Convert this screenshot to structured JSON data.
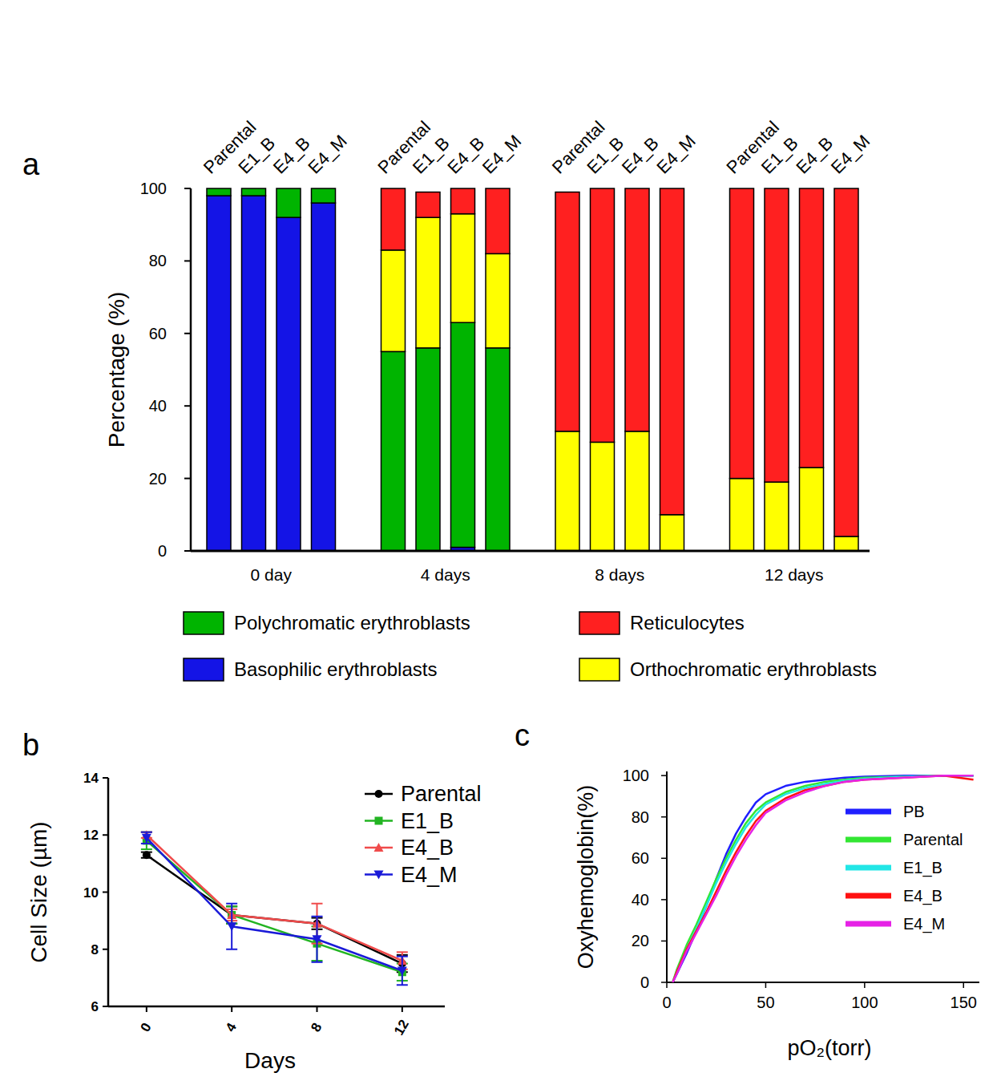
{
  "chart_data": [
    {
      "label": "a",
      "type": "bar",
      "stacked": true,
      "categories": [
        "Parental",
        "E1_B",
        "E4_B",
        "E4_M",
        "Parental",
        "E1_B",
        "E4_B",
        "E4_M",
        "Parental",
        "E1_B",
        "E4_B",
        "E4_M",
        "Parental",
        "E1_B",
        "E4_B",
        "E4_M"
      ],
      "groups": [
        "0 day",
        "4 days",
        "8 days",
        "12 days"
      ],
      "y_label": "Percentage (%)",
      "ylim": [
        0,
        100
      ],
      "yticks": [
        0,
        20,
        40,
        60,
        80,
        100
      ],
      "legend": "bottom",
      "series": [
        {
          "name": "Basophilic erythroblasts",
          "color": "#1414e6",
          "values": [
            98,
            98,
            92,
            96,
            0,
            0,
            1,
            0,
            0,
            0,
            0,
            0,
            0,
            0,
            0,
            0
          ]
        },
        {
          "name": "Polychromatic erythroblasts",
          "color": "#00b400",
          "values": [
            2,
            2,
            8,
            4,
            55,
            56,
            62,
            56,
            0,
            0,
            0,
            0,
            0,
            0,
            0,
            0
          ]
        },
        {
          "name": "Orthochromatic erythroblasts",
          "color": "#ffff00",
          "values": [
            0,
            0,
            0,
            0,
            28,
            36,
            30,
            26,
            33,
            30,
            33,
            10,
            20,
            19,
            23,
            4
          ]
        },
        {
          "name": "Reticulocytes",
          "color": "#ff2020",
          "values": [
            0,
            0,
            0,
            0,
            17,
            7,
            7,
            18,
            66,
            70,
            67,
            90,
            80,
            81,
            77,
            96
          ]
        }
      ]
    },
    {
      "label": "b",
      "type": "line",
      "x_label": "Days",
      "y_label": "Cell Size (µm)",
      "x": [
        0,
        4,
        8,
        12
      ],
      "xlim": [
        -1.8,
        14
      ],
      "xticks": [
        0,
        4,
        8,
        12
      ],
      "ylim": [
        6,
        14
      ],
      "yticks": [
        6,
        8,
        10,
        12,
        14
      ],
      "legend": "top-right",
      "series": [
        {
          "name": "Parental",
          "color": "#000000",
          "marker": "circle",
          "values": [
            11.3,
            9.2,
            8.9,
            7.5
          ],
          "errors": [
            0.1,
            0.3,
            0.2,
            0.3
          ]
        },
        {
          "name": "E1_B",
          "color": "#22b422",
          "marker": "square",
          "values": [
            11.8,
            9.2,
            8.2,
            7.2
          ],
          "errors": [
            0.3,
            0.3,
            0.6,
            0.3
          ]
        },
        {
          "name": "E4_B",
          "color": "#f04b4b",
          "marker": "triangle-up",
          "values": [
            12.0,
            9.2,
            8.9,
            7.6
          ],
          "errors": [
            0.1,
            0.2,
            0.7,
            0.3
          ]
        },
        {
          "name": "E4_M",
          "color": "#1a1ad8",
          "marker": "triangle-down",
          "values": [
            11.9,
            8.8,
            8.35,
            7.25
          ],
          "errors": [
            0.2,
            0.8,
            0.8,
            0.5
          ]
        }
      ]
    },
    {
      "label": "c",
      "type": "line",
      "x_label": "pO₂(torr)",
      "y_label": "Oxyhemoglobin(%)",
      "x": [
        3,
        5,
        10,
        15,
        20,
        25,
        30,
        35,
        40,
        45,
        50,
        60,
        70,
        80,
        90,
        100,
        120,
        140,
        155
      ],
      "xlim": [
        0,
        158
      ],
      "xticks": [
        0,
        50,
        100,
        150
      ],
      "ylim": [
        0,
        102
      ],
      "yticks": [
        0,
        20,
        40,
        60,
        80,
        100
      ],
      "legend": "top-right",
      "series": [
        {
          "name": "PB",
          "color": "#1f1fff",
          "values": [
            0,
            4,
            14,
            25,
            37,
            50,
            62,
            72,
            80,
            87,
            91,
            95,
            97,
            98,
            99,
            99.5,
            100,
            100,
            100
          ]
        },
        {
          "name": "Parental",
          "color": "#33e633",
          "values": [
            0,
            6,
            18,
            28,
            39,
            50,
            60,
            69,
            77,
            83,
            87,
            92,
            95,
            97,
            98,
            99,
            99.5,
            100,
            100
          ]
        },
        {
          "name": "E1_B",
          "color": "#22e6e6",
          "values": [
            0,
            5,
            16,
            26,
            37,
            48,
            58,
            67,
            75,
            81,
            86,
            91,
            94,
            96,
            97.5,
            98.5,
            99.5,
            100,
            100
          ]
        },
        {
          "name": "E4_B",
          "color": "#ff1111",
          "values": [
            0,
            5,
            16,
            25,
            34,
            44,
            54,
            63,
            71,
            78,
            83,
            89,
            93,
            95,
            97,
            98,
            99,
            100,
            98
          ]
        },
        {
          "name": "E4_M",
          "color": "#e622e6",
          "values": [
            0,
            4,
            15,
            24,
            33,
            42,
            52,
            61,
            69,
            76,
            82,
            88,
            92,
            95,
            97,
            98,
            99,
            100,
            100
          ]
        }
      ]
    }
  ]
}
